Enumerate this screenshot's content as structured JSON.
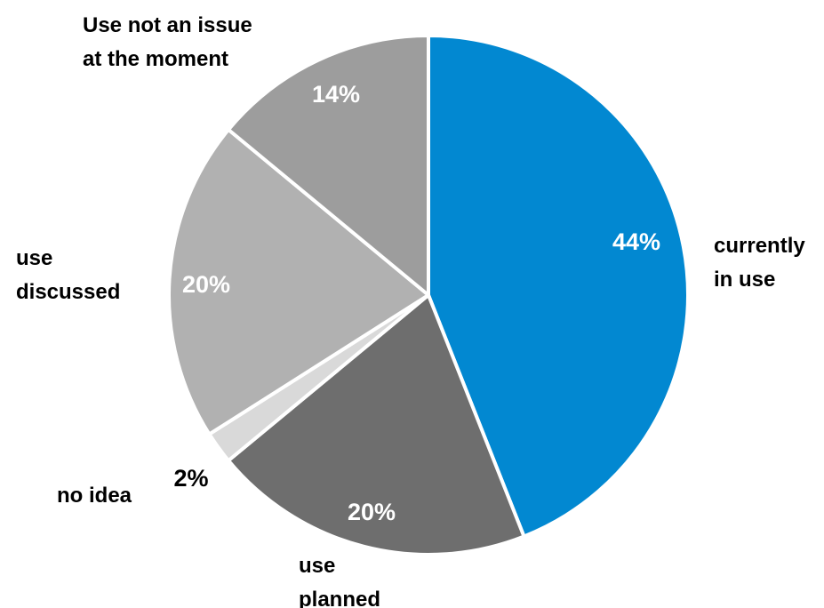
{
  "chart_data": {
    "type": "pie",
    "slices": [
      {
        "label_lines": [
          "currently",
          "in use"
        ],
        "value": 44,
        "value_label": "44%",
        "color": "#0288D1",
        "text_color": "#ffffff"
      },
      {
        "label_lines": [
          "use",
          "planned"
        ],
        "value": 20,
        "value_label": "20%",
        "color": "#6E6E6E",
        "text_color": "#ffffff"
      },
      {
        "label_lines": [
          "no idea"
        ],
        "value": 2,
        "value_label": "2%",
        "color": "#D9D9D9",
        "text_color": "#000000"
      },
      {
        "label_lines": [
          "use",
          "discussed"
        ],
        "value": 20,
        "value_label": "20%",
        "color": "#B1B1B1",
        "text_color": "#ffffff"
      },
      {
        "label_lines": [
          "Use not an issue",
          "at the moment"
        ],
        "value": 14,
        "value_label": "14%",
        "color": "#9D9D9D",
        "text_color": "#ffffff"
      }
    ],
    "start_angle_deg": 0,
    "direction": "clockwise",
    "legend": "none"
  }
}
